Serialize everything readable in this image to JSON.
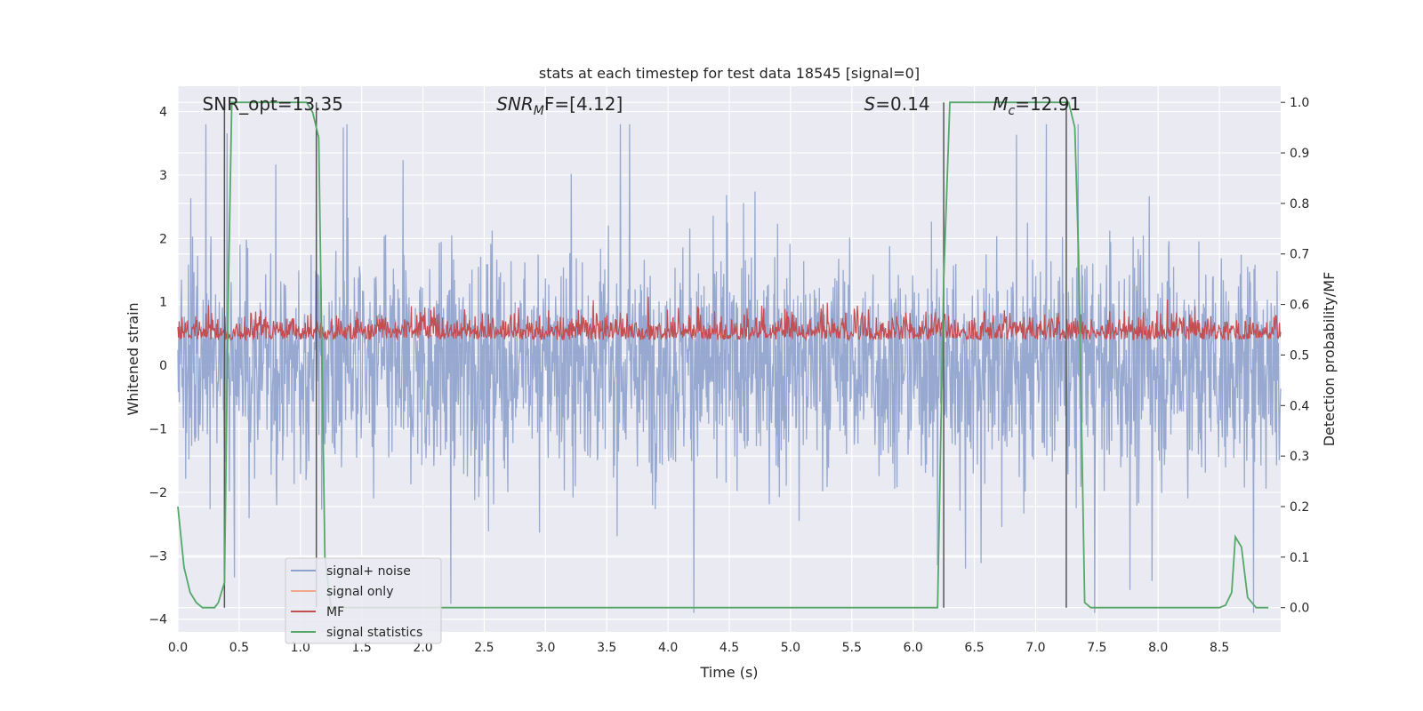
{
  "chart_data": {
    "type": "line",
    "title": "stats at each timestep for test data 18545 [signal=0]",
    "xlabel": "Time (s)",
    "ylabel_left": "Whitened strain",
    "ylabel_right": "Detection probability/MF",
    "xlim": [
      0.0,
      9.0
    ],
    "ylim_left": [
      -4.2,
      4.4
    ],
    "ylim_right": [
      -0.048,
      1.032
    ],
    "x_ticks": [
      "0.0",
      "0.5",
      "1.0",
      "1.5",
      "2.0",
      "2.5",
      "3.0",
      "3.5",
      "4.0",
      "4.5",
      "5.0",
      "5.5",
      "6.0",
      "6.5",
      "7.0",
      "7.5",
      "8.0",
      "8.5"
    ],
    "y_ticks_left": [
      "4",
      "3",
      "2",
      "1",
      "0",
      "−1",
      "−2",
      "−3",
      "−4"
    ],
    "y_ticks_right": [
      "1.0",
      "0.9",
      "0.8",
      "0.7",
      "0.6",
      "0.5",
      "0.4",
      "0.3",
      "0.2",
      "0.1",
      "0.0"
    ],
    "grid": true,
    "legend_position": "lower-left",
    "annotations": [
      {
        "text": "SNR_opt=13.35",
        "x": 0.2
      },
      {
        "text": "SNR",
        "sub": "M",
        "rest": "F=[4.12]",
        "italic": true,
        "x": 2.6
      },
      {
        "text": "S",
        "rest": "=0.14",
        "italic": true,
        "x": 5.6
      },
      {
        "text": "M",
        "sub": "c",
        "rest": "=12.91",
        "italic": true,
        "x": 6.65
      }
    ],
    "series": [
      {
        "name": "signal+ noise",
        "color": "#8ea2cc",
        "axis": "left",
        "description": "noise-like whitened strain, approx range -3.9 to 3.8"
      },
      {
        "name": "signal only",
        "color": "#f0a888",
        "axis": "left",
        "values": []
      },
      {
        "name": "MF",
        "color": "#c44e52",
        "axis": "right",
        "description": "matched-filter output fluctuating approx 0.5 to 0.6"
      },
      {
        "name": "signal statistics",
        "color": "#55a868",
        "axis": "right",
        "x": [
          0.0,
          0.05,
          0.1,
          0.15,
          0.2,
          0.25,
          0.3,
          0.33,
          0.38,
          0.41,
          0.44,
          0.5,
          0.6,
          0.8,
          1.0,
          1.05,
          1.1,
          1.15,
          1.2,
          1.25,
          1.3,
          1.5,
          2.0,
          3.0,
          4.0,
          5.0,
          6.0,
          6.2,
          6.25,
          6.3,
          6.4,
          6.5,
          7.0,
          7.2,
          7.27,
          7.32,
          7.35,
          7.4,
          7.45,
          7.5,
          8.0,
          8.5,
          8.55,
          8.6,
          8.63,
          8.68,
          8.73,
          8.8,
          8.9
        ],
        "y": [
          0.2,
          0.08,
          0.03,
          0.01,
          0.0,
          0.0,
          0.0,
          0.01,
          0.05,
          0.6,
          1.0,
          1.0,
          1.0,
          1.0,
          1.0,
          1.0,
          0.98,
          0.93,
          0.1,
          0.0,
          0.0,
          0.0,
          0.0,
          0.0,
          0.0,
          0.0,
          0.0,
          0.0,
          0.65,
          1.0,
          1.0,
          1.0,
          1.0,
          1.0,
          1.0,
          0.95,
          0.7,
          0.01,
          0.0,
          0.0,
          0.0,
          0.0,
          0.005,
          0.03,
          0.14,
          0.12,
          0.02,
          0.0,
          0.0
        ]
      },
      {
        "name": "detection-markers",
        "color": "#555555",
        "axis": "right",
        "x": [
          0.38,
          1.13,
          6.25,
          7.25
        ]
      }
    ]
  }
}
